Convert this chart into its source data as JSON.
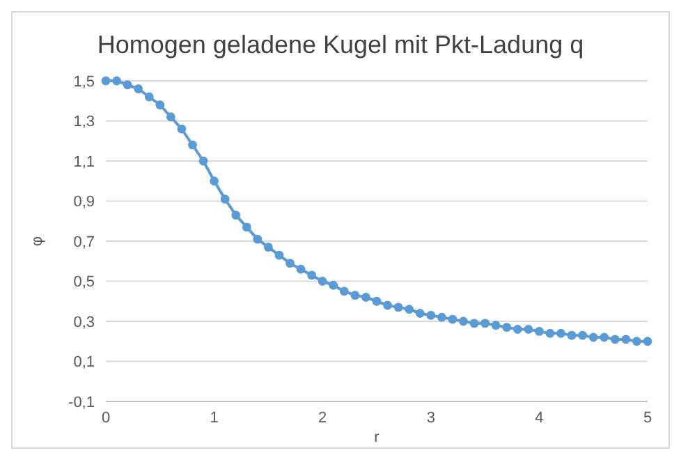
{
  "chart_data": {
    "type": "line",
    "title": "Homogen geladene Kugel mit Pkt-Ladung q",
    "xlabel": "r",
    "ylabel": "φ",
    "x": [
      0,
      0.1,
      0.2,
      0.3,
      0.4,
      0.5,
      0.6,
      0.7,
      0.8,
      0.9,
      1,
      1.1,
      1.2,
      1.3,
      1.4,
      1.5,
      1.6,
      1.7,
      1.8,
      1.9,
      2,
      2.1,
      2.2,
      2.3,
      2.4,
      2.5,
      2.6,
      2.7,
      2.8,
      2.9,
      3,
      3.1,
      3.2,
      3.3,
      3.4,
      3.5,
      3.6,
      3.7,
      3.8,
      3.9,
      4,
      4.1,
      4.2,
      4.3,
      4.4,
      4.5,
      4.6,
      4.7,
      4.8,
      4.9,
      5
    ],
    "series": [
      {
        "color": "#5b9bd5",
        "values": [
          1.5,
          1.5,
          1.48,
          1.46,
          1.42,
          1.38,
          1.32,
          1.26,
          1.18,
          1.1,
          1.0,
          0.91,
          0.83,
          0.77,
          0.71,
          0.67,
          0.63,
          0.59,
          0.56,
          0.53,
          0.5,
          0.48,
          0.45,
          0.43,
          0.42,
          0.4,
          0.38,
          0.37,
          0.36,
          0.34,
          0.33,
          0.32,
          0.31,
          0.3,
          0.29,
          0.29,
          0.28,
          0.27,
          0.26,
          0.26,
          0.25,
          0.24,
          0.24,
          0.23,
          0.23,
          0.22,
          0.22,
          0.21,
          0.21,
          0.2,
          0.2
        ]
      }
    ],
    "xlim": [
      0,
      5
    ],
    "xticks": [
      0,
      1,
      2,
      3,
      4,
      5
    ],
    "ylim": [
      -0.1,
      1.5
    ],
    "yticks": [
      {
        "value": -0.1,
        "label": "-0,1"
      },
      {
        "value": 0.1,
        "label": "0,1"
      },
      {
        "value": 0.3,
        "label": "0,3"
      },
      {
        "value": 0.5,
        "label": "0,5"
      },
      {
        "value": 0.7,
        "label": "0,7"
      },
      {
        "value": 0.9,
        "label": "0,9"
      },
      {
        "value": 1.1,
        "label": "1,1"
      },
      {
        "value": 1.3,
        "label": "1,3"
      },
      {
        "value": 1.5,
        "label": "1,5"
      }
    ],
    "grid": "y",
    "marker": "circle",
    "line_style": "solid"
  }
}
